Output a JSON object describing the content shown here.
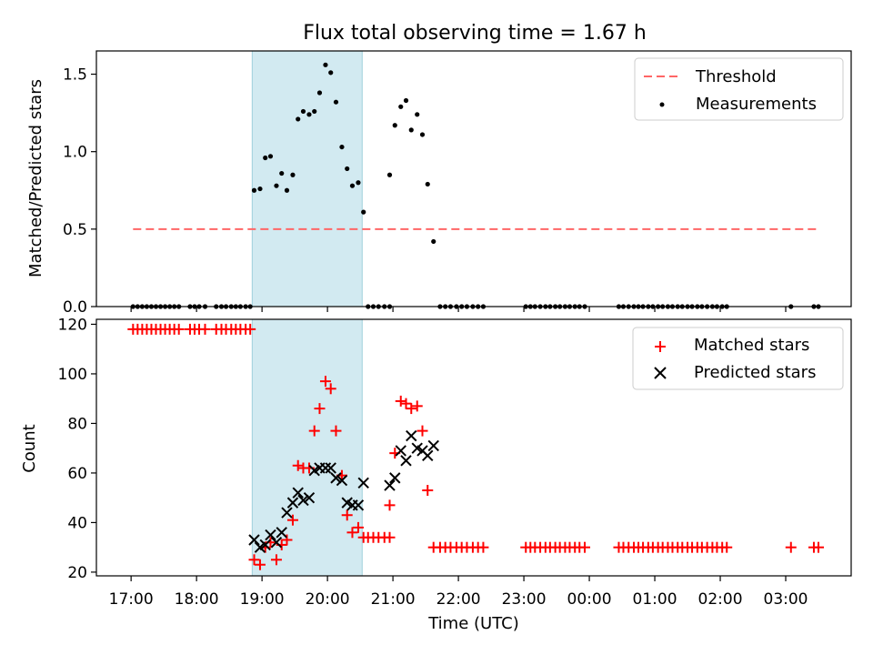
{
  "chart_data": {
    "title": "Flux total observing time = 1.67 h",
    "xlabel": "Time (UTC)",
    "x_tick_labels": [
      "17:00",
      "18:00",
      "19:00",
      "20:00",
      "21:00",
      "22:00",
      "23:00",
      "00:00",
      "01:00",
      "02:00",
      "03:00"
    ],
    "x_unit": "hours since 17:00",
    "xlim": [
      -0.53,
      11.0
    ],
    "shaded_region": {
      "x_start": 1.85,
      "x_end": 3.53,
      "color": "#add8e6"
    },
    "colors": {
      "threshold": "#ff6666",
      "measurements": "#000000",
      "matched": "#ff0000",
      "predicted": "#000000",
      "shade": "#add8e6"
    },
    "charts": [
      {
        "type": "scatter",
        "ylabel": "Matched/Predicted stars",
        "ylim": [
          0,
          1.65
        ],
        "y_ticks": [
          0.0,
          0.5,
          1.0,
          1.5
        ],
        "y_tick_labels": [
          "0.0",
          "0.5",
          "1.0",
          "1.5"
        ],
        "legend": {
          "position": "top-right",
          "entries": [
            "Threshold",
            "Measurements"
          ]
        },
        "threshold": {
          "name": "Threshold",
          "y": 0.5,
          "x_range": [
            0.03,
            10.5
          ]
        },
        "measurements": {
          "name": "Measurements",
          "points": [
            [
              0.03,
              0
            ],
            [
              0.1,
              0
            ],
            [
              0.17,
              0
            ],
            [
              0.24,
              0
            ],
            [
              0.31,
              0
            ],
            [
              0.38,
              0
            ],
            [
              0.45,
              0
            ],
            [
              0.52,
              0
            ],
            [
              0.59,
              0
            ],
            [
              0.66,
              0
            ],
            [
              0.73,
              0
            ],
            [
              0.9,
              0
            ],
            [
              0.97,
              0
            ],
            [
              1.04,
              0
            ],
            [
              1.13,
              0
            ],
            [
              1.3,
              0
            ],
            [
              1.38,
              0
            ],
            [
              1.45,
              0
            ],
            [
              1.53,
              0
            ],
            [
              1.6,
              0
            ],
            [
              1.67,
              0
            ],
            [
              1.75,
              0
            ],
            [
              1.82,
              0
            ],
            [
              1.88,
              0.75
            ],
            [
              1.97,
              0.76
            ],
            [
              2.05,
              0.96
            ],
            [
              2.13,
              0.97
            ],
            [
              2.22,
              0.78
            ],
            [
              2.3,
              0.86
            ],
            [
              2.38,
              0.75
            ],
            [
              2.47,
              0.85
            ],
            [
              2.55,
              1.21
            ],
            [
              2.63,
              1.26
            ],
            [
              2.72,
              1.24
            ],
            [
              2.8,
              1.26
            ],
            [
              2.88,
              1.38
            ],
            [
              2.97,
              1.56
            ],
            [
              3.05,
              1.51
            ],
            [
              3.13,
              1.32
            ],
            [
              3.22,
              1.03
            ],
            [
              3.3,
              0.89
            ],
            [
              3.38,
              0.78
            ],
            [
              3.47,
              0.8
            ],
            [
              3.55,
              0.61
            ],
            [
              3.62,
              0
            ],
            [
              3.7,
              0
            ],
            [
              3.78,
              0
            ],
            [
              3.87,
              0
            ],
            [
              3.95,
              0
            ],
            [
              3.95,
              0.85
            ],
            [
              4.03,
              1.17
            ],
            [
              4.12,
              1.29
            ],
            [
              4.2,
              1.33
            ],
            [
              4.28,
              1.14
            ],
            [
              4.37,
              1.24
            ],
            [
              4.45,
              1.11
            ],
            [
              4.53,
              0.79
            ],
            [
              4.62,
              0.42
            ],
            [
              4.72,
              0
            ],
            [
              4.8,
              0
            ],
            [
              4.88,
              0
            ],
            [
              4.97,
              0
            ],
            [
              5.05,
              0
            ],
            [
              5.13,
              0
            ],
            [
              5.22,
              0
            ],
            [
              5.3,
              0
            ],
            [
              5.38,
              0
            ],
            [
              6.03,
              0
            ],
            [
              6.1,
              0
            ],
            [
              6.17,
              0
            ],
            [
              6.25,
              0
            ],
            [
              6.33,
              0
            ],
            [
              6.4,
              0
            ],
            [
              6.48,
              0
            ],
            [
              6.55,
              0
            ],
            [
              6.63,
              0
            ],
            [
              6.7,
              0
            ],
            [
              6.78,
              0
            ],
            [
              6.85,
              0
            ],
            [
              6.93,
              0
            ],
            [
              7.45,
              0
            ],
            [
              7.52,
              0
            ],
            [
              7.6,
              0
            ],
            [
              7.68,
              0
            ],
            [
              7.75,
              0
            ],
            [
              7.82,
              0
            ],
            [
              7.9,
              0
            ],
            [
              7.97,
              0
            ],
            [
              8.05,
              0
            ],
            [
              8.12,
              0
            ],
            [
              8.2,
              0
            ],
            [
              8.27,
              0
            ],
            [
              8.35,
              0
            ],
            [
              8.42,
              0
            ],
            [
              8.5,
              0
            ],
            [
              8.57,
              0
            ],
            [
              8.65,
              0
            ],
            [
              8.72,
              0
            ],
            [
              8.8,
              0
            ],
            [
              8.88,
              0
            ],
            [
              8.95,
              0
            ],
            [
              9.03,
              0
            ],
            [
              9.1,
              0
            ],
            [
              10.08,
              0
            ],
            [
              10.43,
              0
            ],
            [
              10.5,
              0
            ]
          ]
        }
      },
      {
        "type": "scatter",
        "ylabel": "Count",
        "ylim": [
          18.5,
          122
        ],
        "y_ticks": [
          20,
          40,
          60,
          80,
          100,
          120
        ],
        "y_tick_labels": [
          "20",
          "40",
          "60",
          "80",
          "100",
          "120"
        ],
        "legend": {
          "position": "top-right",
          "entries": [
            "Matched stars",
            "Predicted stars"
          ]
        },
        "series": [
          {
            "name": "Matched stars",
            "marker": "plus",
            "points": [
              [
                0.03,
                118
              ],
              [
                0.1,
                118
              ],
              [
                0.17,
                118
              ],
              [
                0.24,
                118
              ],
              [
                0.31,
                118
              ],
              [
                0.38,
                118
              ],
              [
                0.45,
                118
              ],
              [
                0.52,
                118
              ],
              [
                0.59,
                118
              ],
              [
                0.66,
                118
              ],
              [
                0.73,
                118
              ],
              [
                0.9,
                118
              ],
              [
                0.97,
                118
              ],
              [
                1.04,
                118
              ],
              [
                1.13,
                118
              ],
              [
                1.3,
                118
              ],
              [
                1.38,
                118
              ],
              [
                1.45,
                118
              ],
              [
                1.53,
                118
              ],
              [
                1.6,
                118
              ],
              [
                1.67,
                118
              ],
              [
                1.75,
                118
              ],
              [
                1.82,
                118
              ],
              [
                1.88,
                25
              ],
              [
                1.97,
                23
              ],
              [
                2.05,
                30
              ],
              [
                2.13,
                32
              ],
              [
                2.22,
                25
              ],
              [
                2.3,
                31
              ],
              [
                2.38,
                33
              ],
              [
                2.47,
                41
              ],
              [
                2.55,
                63
              ],
              [
                2.63,
                62
              ],
              [
                2.72,
                62
              ],
              [
                2.8,
                77
              ],
              [
                2.88,
                86
              ],
              [
                2.97,
                97
              ],
              [
                3.05,
                94
              ],
              [
                3.13,
                77
              ],
              [
                3.22,
                59
              ],
              [
                3.3,
                43
              ],
              [
                3.38,
                36
              ],
              [
                3.47,
                38
              ],
              [
                3.55,
                34
              ],
              [
                3.62,
                34
              ],
              [
                3.7,
                34
              ],
              [
                3.78,
                34
              ],
              [
                3.87,
                34
              ],
              [
                3.95,
                34
              ],
              [
                3.95,
                47
              ],
              [
                4.03,
                68
              ],
              [
                4.12,
                89
              ],
              [
                4.2,
                88
              ],
              [
                4.28,
                86
              ],
              [
                4.37,
                87
              ],
              [
                4.45,
                77
              ],
              [
                4.53,
                53
              ],
              [
                4.62,
                30
              ],
              [
                4.72,
                30
              ],
              [
                4.8,
                30
              ],
              [
                4.88,
                30
              ],
              [
                4.97,
                30
              ],
              [
                5.05,
                30
              ],
              [
                5.13,
                30
              ],
              [
                5.22,
                30
              ],
              [
                5.3,
                30
              ],
              [
                5.38,
                30
              ],
              [
                6.03,
                30
              ],
              [
                6.1,
                30
              ],
              [
                6.17,
                30
              ],
              [
                6.25,
                30
              ],
              [
                6.33,
                30
              ],
              [
                6.4,
                30
              ],
              [
                6.48,
                30
              ],
              [
                6.55,
                30
              ],
              [
                6.63,
                30
              ],
              [
                6.7,
                30
              ],
              [
                6.78,
                30
              ],
              [
                6.85,
                30
              ],
              [
                6.93,
                30
              ],
              [
                7.45,
                30
              ],
              [
                7.52,
                30
              ],
              [
                7.6,
                30
              ],
              [
                7.68,
                30
              ],
              [
                7.75,
                30
              ],
              [
                7.82,
                30
              ],
              [
                7.9,
                30
              ],
              [
                7.97,
                30
              ],
              [
                8.05,
                30
              ],
              [
                8.12,
                30
              ],
              [
                8.2,
                30
              ],
              [
                8.27,
                30
              ],
              [
                8.35,
                30
              ],
              [
                8.42,
                30
              ],
              [
                8.5,
                30
              ],
              [
                8.57,
                30
              ],
              [
                8.65,
                30
              ],
              [
                8.72,
                30
              ],
              [
                8.8,
                30
              ],
              [
                8.88,
                30
              ],
              [
                8.95,
                30
              ],
              [
                9.03,
                30
              ],
              [
                9.1,
                30
              ],
              [
                10.08,
                30
              ],
              [
                10.43,
                30
              ],
              [
                10.5,
                30
              ]
            ]
          },
          {
            "name": "Predicted stars",
            "marker": "x",
            "points": [
              [
                1.88,
                33
              ],
              [
                1.97,
                30
              ],
              [
                2.05,
                31
              ],
              [
                2.13,
                35
              ],
              [
                2.22,
                32
              ],
              [
                2.3,
                36
              ],
              [
                2.38,
                44
              ],
              [
                2.47,
                48
              ],
              [
                2.55,
                52
              ],
              [
                2.63,
                49
              ],
              [
                2.72,
                50
              ],
              [
                2.8,
                61
              ],
              [
                2.88,
                62
              ],
              [
                2.97,
                62
              ],
              [
                3.05,
                62
              ],
              [
                3.13,
                58
              ],
              [
                3.22,
                57
              ],
              [
                3.3,
                48
              ],
              [
                3.38,
                47
              ],
              [
                3.47,
                47
              ],
              [
                3.55,
                56
              ],
              [
                3.95,
                55
              ],
              [
                4.03,
                58
              ],
              [
                4.12,
                69
              ],
              [
                4.2,
                65
              ],
              [
                4.28,
                75
              ],
              [
                4.37,
                70
              ],
              [
                4.45,
                69
              ],
              [
                4.53,
                67
              ],
              [
                4.62,
                71
              ]
            ]
          }
        ]
      }
    ]
  }
}
